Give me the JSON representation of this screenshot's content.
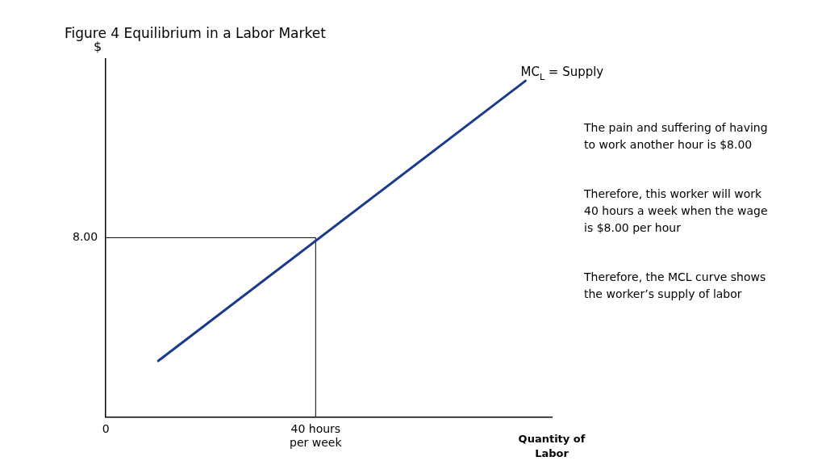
{
  "chart_data": {
    "type": "line",
    "title": "Figure 4 Equilibrium in a Labor Market",
    "x_label": "Quantity of\nLabor",
    "y_label": "$",
    "x": [
      10,
      80
    ],
    "series": [
      {
        "color": "#1a3a8c",
        "values": [
          2.5,
          15.0
        ],
        "end_label": {
          "text": "MC",
          "subscript": "L",
          "after": " = Supply"
        }
      }
    ],
    "equilibrium": {
      "x": 40,
      "y": 8.0,
      "color": "#000000"
    },
    "xlim": [
      0,
      85
    ],
    "ylim": [
      0,
      16
    ],
    "xticks": [
      {
        "value": 0,
        "label": "0"
      },
      {
        "value": 40,
        "label": "40 hours\nper week"
      }
    ],
    "yticks": [
      {
        "value": 8.0,
        "label": "8.00"
      }
    ],
    "grid": false,
    "annotations": [
      "The pain and suffering of having\nto work another hour is $8.00",
      "Therefore, this worker will work\n40 hours a week when the wage\nis $8.00 per hour",
      "Therefore, the MCL curve shows\nthe worker’s supply of labor"
    ]
  }
}
